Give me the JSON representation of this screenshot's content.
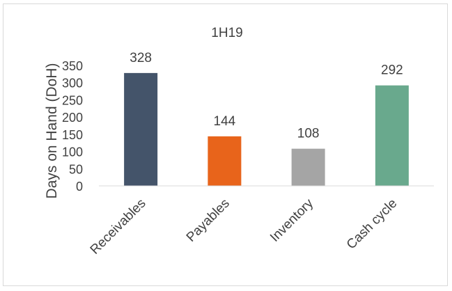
{
  "chart_data": {
    "type": "bar",
    "title": "1H19",
    "ylabel": "Days on Hand (DoH)",
    "xlabel": "",
    "categories": [
      "Receivables",
      "Payables",
      "Inventory",
      "Cash cycle"
    ],
    "values": [
      328,
      144,
      108,
      292
    ],
    "data_labels": [
      "328",
      "144",
      "108",
      "292"
    ],
    "ylim": [
      0,
      350
    ],
    "yticks": [
      0,
      50,
      100,
      150,
      200,
      250,
      300,
      350
    ],
    "grid": false,
    "legend": "none",
    "colors": [
      "#44546a",
      "#e8641b",
      "#a5a5a5",
      "#69a98d"
    ]
  }
}
